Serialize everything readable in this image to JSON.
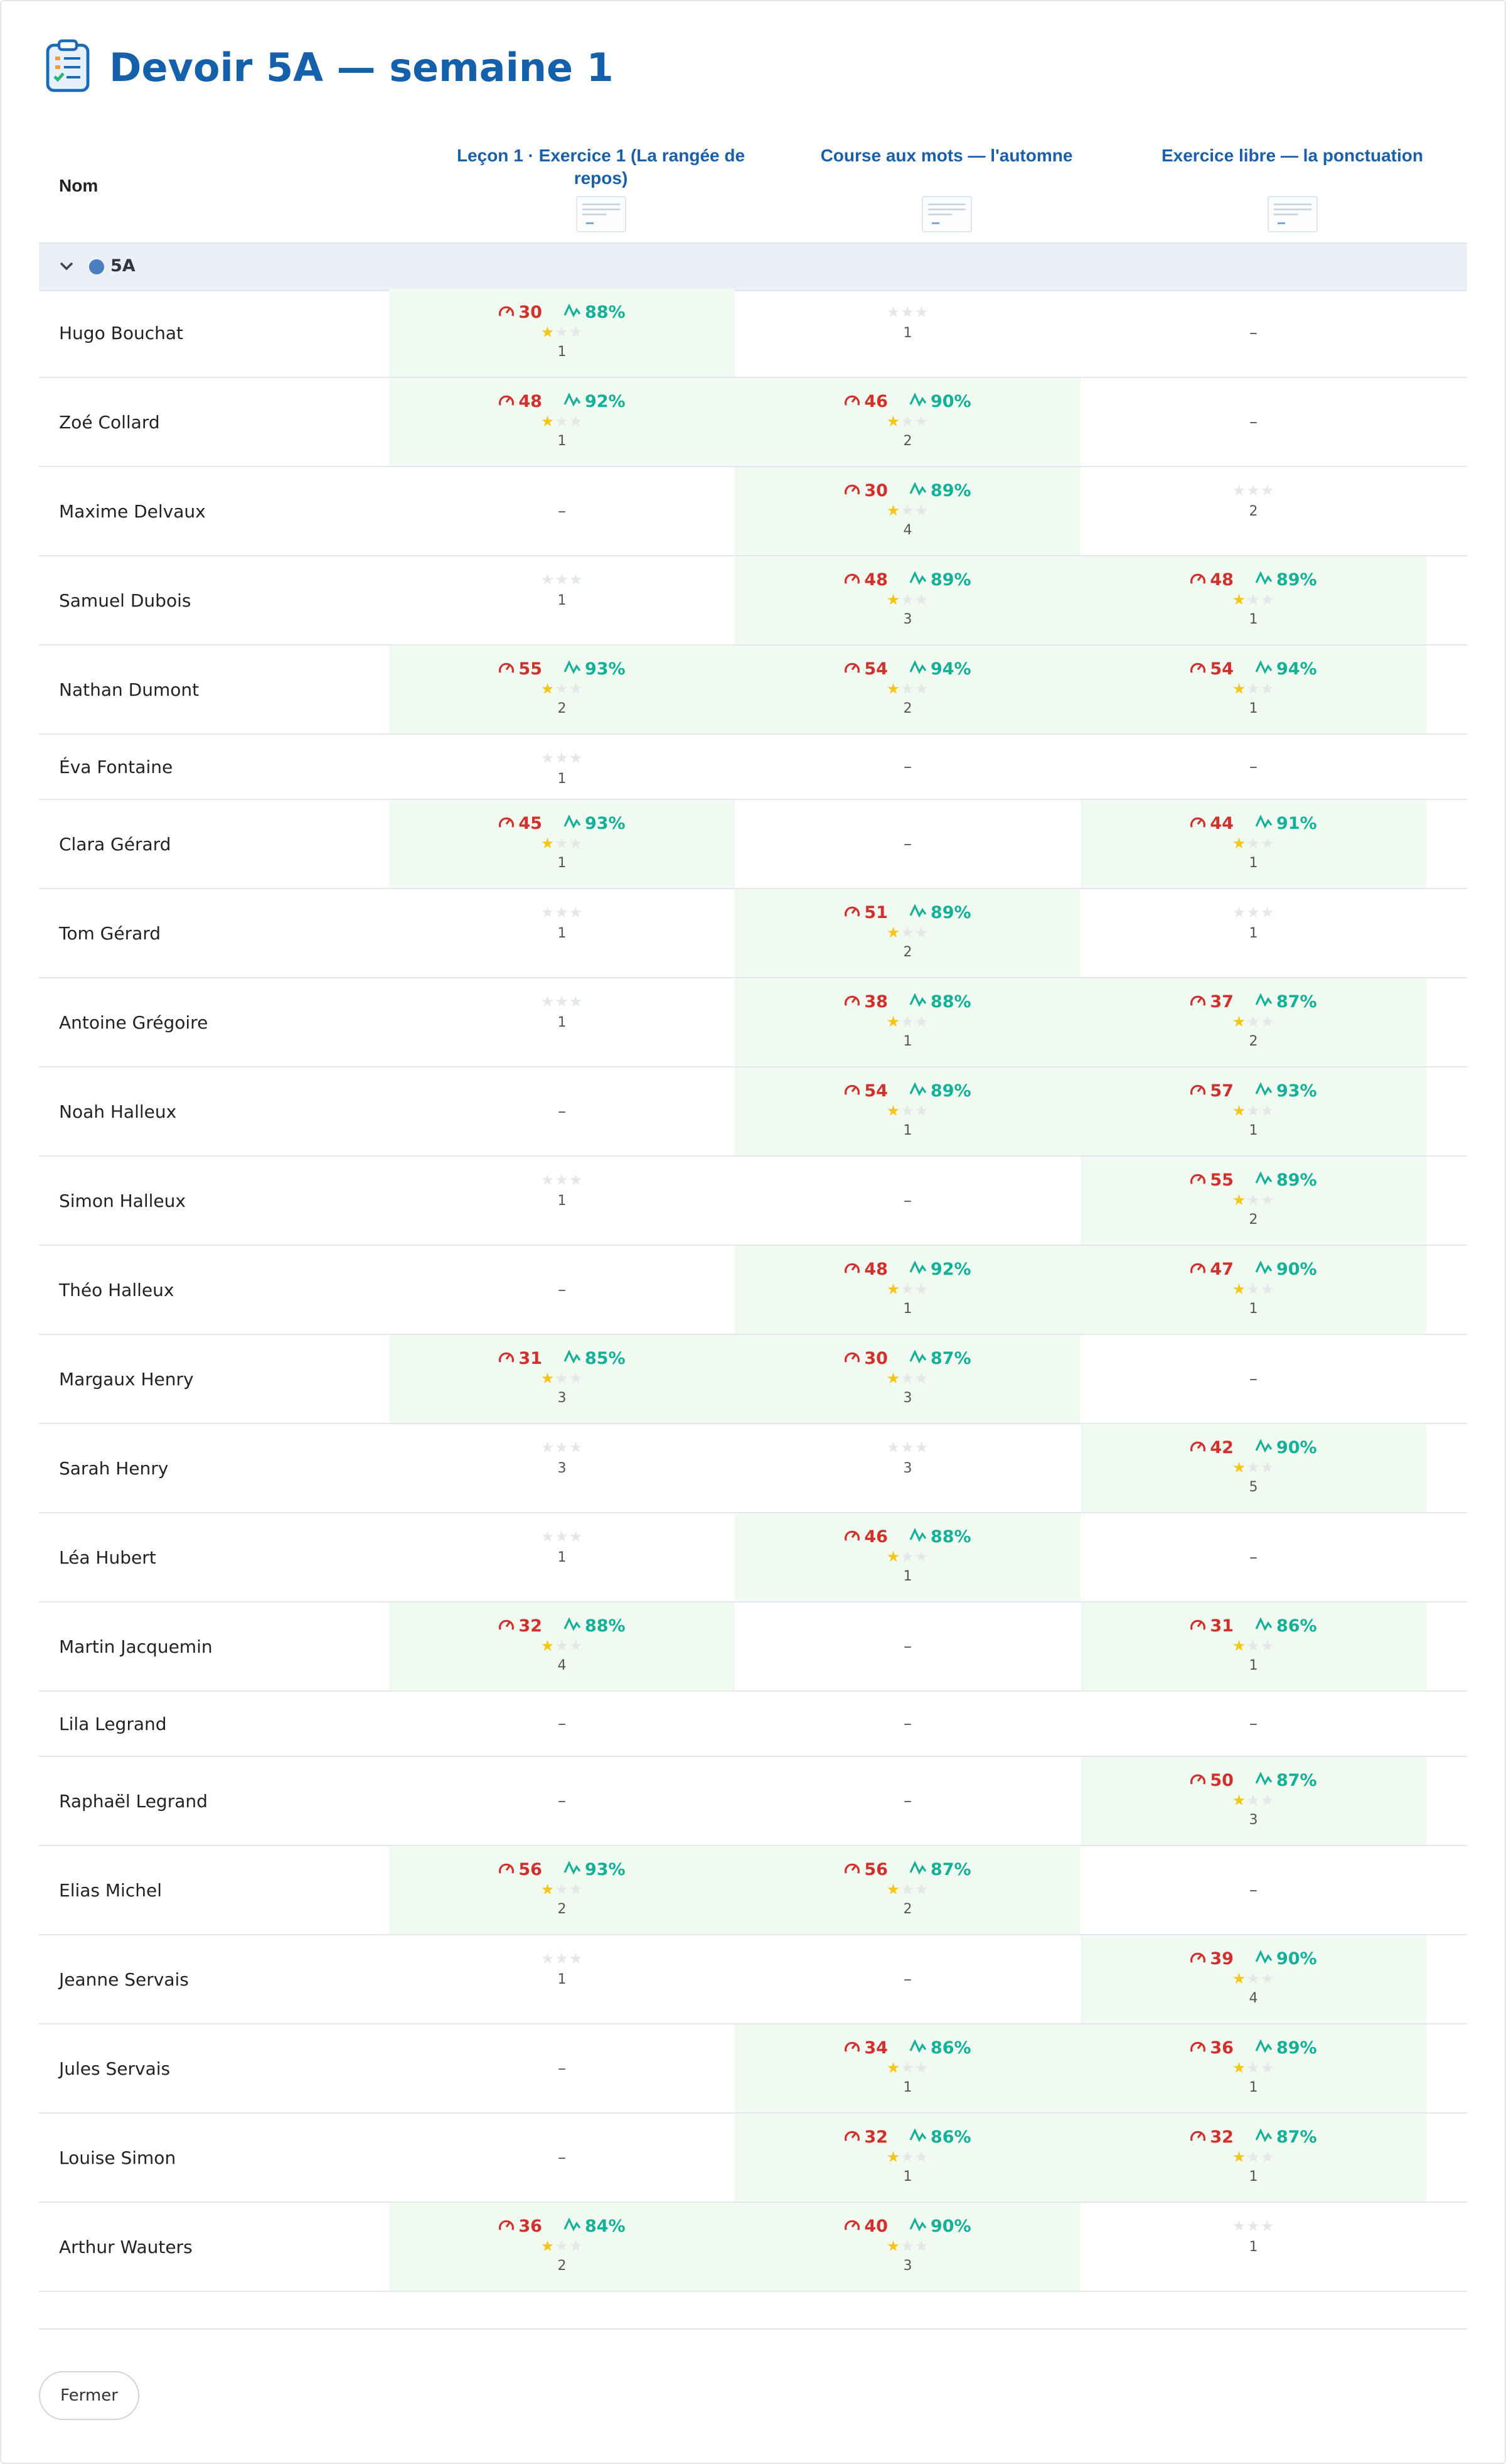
{
  "title": "Devoir 5A — semaine 1",
  "columns": {
    "name_header": "Nom",
    "exercises": [
      {
        "label": "Leçon 1 · Exercice 1 (La rangée de repos)"
      },
      {
        "label": "Course aux mots — l'automne"
      },
      {
        "label": "Exercice libre — la ponctuation"
      }
    ]
  },
  "group": {
    "name": "5A",
    "color": "#4a7fc1"
  },
  "colors": {
    "speed": "#d0312d",
    "accuracy": "#14b098",
    "star": "#f5c518",
    "completed_bg": "#f1faf1",
    "title": "#1460aa"
  },
  "empty_mark": "–",
  "students": [
    {
      "name": "Hugo Bouchat",
      "results": [
        {
          "speed": "30",
          "accuracy": "88%",
          "stars": 1,
          "attempts": "1"
        },
        {
          "stars": 0,
          "attempts": "1"
        },
        null
      ]
    },
    {
      "name": "Zoé Collard",
      "results": [
        {
          "speed": "48",
          "accuracy": "92%",
          "stars": 1,
          "attempts": "1"
        },
        {
          "speed": "46",
          "accuracy": "90%",
          "stars": 1,
          "attempts": "2"
        },
        null
      ]
    },
    {
      "name": "Maxime Delvaux",
      "results": [
        null,
        {
          "speed": "30",
          "accuracy": "89%",
          "stars": 1,
          "attempts": "4"
        },
        {
          "stars": 0,
          "attempts": "2"
        }
      ]
    },
    {
      "name": "Samuel Dubois",
      "results": [
        {
          "stars": 0,
          "attempts": "1"
        },
        {
          "speed": "48",
          "accuracy": "89%",
          "stars": 1,
          "attempts": "3"
        },
        {
          "speed": "48",
          "accuracy": "89%",
          "stars": 1,
          "attempts": "1"
        }
      ]
    },
    {
      "name": "Nathan Dumont",
      "results": [
        {
          "speed": "55",
          "accuracy": "93%",
          "stars": 1,
          "attempts": "2"
        },
        {
          "speed": "54",
          "accuracy": "94%",
          "stars": 1,
          "attempts": "2"
        },
        {
          "speed": "54",
          "accuracy": "94%",
          "stars": 1,
          "attempts": "1"
        }
      ]
    },
    {
      "name": "Éva Fontaine",
      "results": [
        {
          "stars": 0,
          "attempts": "1"
        },
        null,
        null
      ]
    },
    {
      "name": "Clara Gérard",
      "results": [
        {
          "speed": "45",
          "accuracy": "93%",
          "stars": 1,
          "attempts": "1"
        },
        null,
        {
          "speed": "44",
          "accuracy": "91%",
          "stars": 1,
          "attempts": "1"
        }
      ]
    },
    {
      "name": "Tom Gérard",
      "results": [
        {
          "stars": 0,
          "attempts": "1"
        },
        {
          "speed": "51",
          "accuracy": "89%",
          "stars": 1,
          "attempts": "2"
        },
        {
          "stars": 0,
          "attempts": "1"
        }
      ]
    },
    {
      "name": "Antoine Grégoire",
      "results": [
        {
          "stars": 0,
          "attempts": "1"
        },
        {
          "speed": "38",
          "accuracy": "88%",
          "stars": 1,
          "attempts": "1"
        },
        {
          "speed": "37",
          "accuracy": "87%",
          "stars": 1,
          "attempts": "2"
        }
      ]
    },
    {
      "name": "Noah Halleux",
      "results": [
        null,
        {
          "speed": "54",
          "accuracy": "89%",
          "stars": 1,
          "attempts": "1"
        },
        {
          "speed": "57",
          "accuracy": "93%",
          "stars": 1,
          "attempts": "1"
        }
      ]
    },
    {
      "name": "Simon Halleux",
      "results": [
        {
          "stars": 0,
          "attempts": "1"
        },
        null,
        {
          "speed": "55",
          "accuracy": "89%",
          "stars": 1,
          "attempts": "2"
        }
      ]
    },
    {
      "name": "Théo Halleux",
      "results": [
        null,
        {
          "speed": "48",
          "accuracy": "92%",
          "stars": 1,
          "attempts": "1"
        },
        {
          "speed": "47",
          "accuracy": "90%",
          "stars": 1,
          "attempts": "1"
        }
      ]
    },
    {
      "name": "Margaux Henry",
      "results": [
        {
          "speed": "31",
          "accuracy": "85%",
          "stars": 1,
          "attempts": "3"
        },
        {
          "speed": "30",
          "accuracy": "87%",
          "stars": 1,
          "attempts": "3"
        },
        null
      ]
    },
    {
      "name": "Sarah Henry",
      "results": [
        {
          "stars": 0,
          "attempts": "3"
        },
        {
          "stars": 0,
          "attempts": "3"
        },
        {
          "speed": "42",
          "accuracy": "90%",
          "stars": 1,
          "attempts": "5"
        }
      ]
    },
    {
      "name": "Léa Hubert",
      "results": [
        {
          "stars": 0,
          "attempts": "1"
        },
        {
          "speed": "46",
          "accuracy": "88%",
          "stars": 1,
          "attempts": "1"
        },
        null
      ]
    },
    {
      "name": "Martin Jacquemin",
      "results": [
        {
          "speed": "32",
          "accuracy": "88%",
          "stars": 1,
          "attempts": "4"
        },
        null,
        {
          "speed": "31",
          "accuracy": "86%",
          "stars": 1,
          "attempts": "1"
        }
      ]
    },
    {
      "name": "Lila Legrand",
      "results": [
        null,
        null,
        null
      ]
    },
    {
      "name": "Raphaël Legrand",
      "results": [
        null,
        null,
        {
          "speed": "50",
          "accuracy": "87%",
          "stars": 1,
          "attempts": "3"
        }
      ]
    },
    {
      "name": "Elias Michel",
      "results": [
        {
          "speed": "56",
          "accuracy": "93%",
          "stars": 1,
          "attempts": "2"
        },
        {
          "speed": "56",
          "accuracy": "87%",
          "stars": 1,
          "attempts": "2"
        },
        null
      ]
    },
    {
      "name": "Jeanne Servais",
      "results": [
        {
          "stars": 0,
          "attempts": "1"
        },
        null,
        {
          "speed": "39",
          "accuracy": "90%",
          "stars": 1,
          "attempts": "4"
        }
      ]
    },
    {
      "name": "Jules Servais",
      "results": [
        null,
        {
          "speed": "34",
          "accuracy": "86%",
          "stars": 1,
          "attempts": "1"
        },
        {
          "speed": "36",
          "accuracy": "89%",
          "stars": 1,
          "attempts": "1"
        }
      ]
    },
    {
      "name": "Louise Simon",
      "results": [
        null,
        {
          "speed": "32",
          "accuracy": "86%",
          "stars": 1,
          "attempts": "1"
        },
        {
          "speed": "32",
          "accuracy": "87%",
          "stars": 1,
          "attempts": "1"
        }
      ]
    },
    {
      "name": "Arthur Wauters",
      "results": [
        {
          "speed": "36",
          "accuracy": "84%",
          "stars": 1,
          "attempts": "2"
        },
        {
          "speed": "40",
          "accuracy": "90%",
          "stars": 1,
          "attempts": "3"
        },
        {
          "stars": 0,
          "attempts": "1"
        }
      ]
    }
  ],
  "footer": {
    "close_label": "Fermer"
  }
}
